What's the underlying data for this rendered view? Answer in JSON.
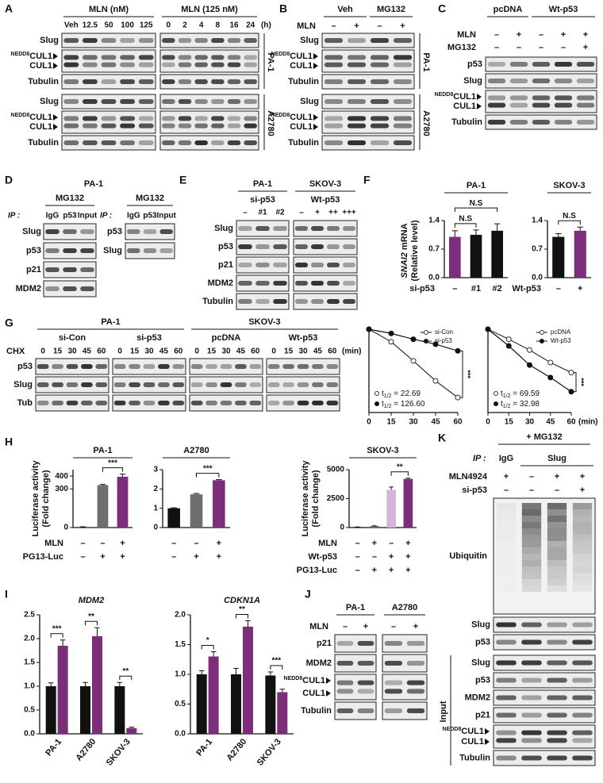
{
  "A": {
    "letter": "A",
    "groups": [
      {
        "title": "MLN (nM)",
        "lanes": [
          "Veh",
          "12.5",
          "50",
          "100",
          "125"
        ]
      },
      {
        "title": "MLN (125 nM)",
        "lanes": [
          "0",
          "2",
          "4",
          "8",
          "16",
          "24"
        ],
        "unit": "(h)"
      }
    ],
    "blocks": [
      {
        "cell": "PA-1",
        "rows": [
          "Slug",
          {
            "sup": "NEDD8",
            "top": "CUL1",
            "bottom": "CUL1"
          },
          "Tubulin"
        ]
      },
      {
        "cell": "A2780",
        "rows": [
          "Slug",
          {
            "sup": "NEDD8",
            "top": "CUL1",
            "bottom": "CUL1"
          },
          "Tubulin"
        ]
      }
    ]
  },
  "B": {
    "letter": "B",
    "groups": [
      "Veh",
      "MG132"
    ],
    "conds": [
      {
        "label": "MLN",
        "values": [
          "–",
          "+",
          "–",
          "+"
        ]
      }
    ],
    "blocks": [
      {
        "cell": "PA-1",
        "rows": [
          "Slug",
          {
            "sup": "NEDD8",
            "top": "CUL1",
            "bottom": "CUL1"
          },
          "Tubulin"
        ]
      },
      {
        "cell": "A2780",
        "rows": [
          "Slug",
          {
            "sup": "NEDD8",
            "top": "CUL1",
            "bottom": "CUL1"
          },
          "Tubulin"
        ]
      }
    ]
  },
  "C": {
    "letter": "C",
    "groups": [
      "pcDNA",
      "Wt-p53"
    ],
    "conds": [
      {
        "label": "MLN",
        "values": [
          "–",
          "+",
          "–",
          "+",
          "+"
        ]
      },
      {
        "label": "MG132",
        "values": [
          "–",
          "–",
          "–",
          "–",
          "+"
        ]
      }
    ],
    "rows": [
      "p53",
      "Slug",
      {
        "sup": "NEDD8",
        "top": "CUL1",
        "bottom": "CUL1"
      },
      "Tubulin"
    ]
  },
  "D": {
    "letter": "D",
    "cell": "PA-1",
    "left": {
      "treatment": "MG132",
      "ip": "IP :",
      "lanes": [
        "IgG",
        "p53",
        "Input"
      ],
      "rows": [
        "Slug",
        "p53",
        "p21",
        "MDM2"
      ]
    },
    "right": {
      "treatment": "MG132",
      "ip": "IP :",
      "lanes": [
        "IgG",
        "p53",
        "Input"
      ],
      "rows": [
        "p53",
        "Slug"
      ]
    }
  },
  "E": {
    "letter": "E",
    "groups": [
      {
        "title": "PA-1",
        "sub": "si-p53",
        "lanes": [
          "–",
          "#1",
          "#2"
        ]
      },
      {
        "title": "SKOV-3",
        "sub": "Wt-p53",
        "lanes": [
          "–",
          "+",
          "++",
          "+++"
        ]
      }
    ],
    "rows": [
      "Slug",
      "p53",
      "p21",
      "MDM2",
      "Tubulin"
    ]
  },
  "F": {
    "letter": "F",
    "ylabel": {
      "gene": "SNAI2",
      "text": " mRNA",
      "unit": "(Relative level)"
    },
    "charts": [
      {
        "type": "bar",
        "title": "PA-1",
        "cond": "si-p53",
        "categories": [
          "–",
          "#1",
          "#2"
        ],
        "values": [
          1.0,
          1.05,
          1.15
        ],
        "errors": [
          0.15,
          0.12,
          0.17
        ],
        "colors": [
          "#7d2e7a",
          "#111111",
          "#111111"
        ],
        "ylim": [
          0,
          1.4
        ],
        "yticks": [
          {
            "value": 0,
            "label": "0.0"
          },
          0.7,
          1.4
        ],
        "sig": [
          "N.S",
          "N.S"
        ]
      },
      {
        "type": "bar",
        "title": "SKOV-3",
        "cond": "Wt-p53",
        "categories": [
          "–",
          "+"
        ],
        "values": [
          1.0,
          1.15
        ],
        "errors": [
          0.08,
          0.09
        ],
        "colors": [
          "#111111",
          "#7d2e7a"
        ],
        "ylim": [
          0,
          1.4
        ],
        "yticks": [
          {
            "value": 0,
            "label": "0.0"
          },
          0.7,
          1.4
        ],
        "sig": [
          "N.S"
        ]
      }
    ]
  },
  "G": {
    "letter": "G",
    "cells": [
      "PA-1",
      "SKOV-3"
    ],
    "cond_label": "CHX",
    "unit": "(min)",
    "groups": [
      {
        "title": "si-Con",
        "lanes": [
          "0",
          "15",
          "30",
          "45",
          "60"
        ]
      },
      {
        "title": "si-p53",
        "lanes": [
          "0",
          "15",
          "30",
          "45",
          "60"
        ]
      },
      {
        "title": "pcDNA",
        "lanes": [
          "0",
          "15",
          "30",
          "45",
          "60"
        ]
      },
      {
        "title": "Wt-p53",
        "lanes": [
          "0",
          "15",
          "30",
          "45",
          "60"
        ]
      }
    ],
    "rows": [
      "p53",
      "Slug",
      "Tub"
    ],
    "charts": [
      {
        "type": "line",
        "x": [
          0,
          15,
          30,
          45,
          60
        ],
        "xlim": [
          0,
          60
        ],
        "ylim": [
          0,
          100
        ],
        "xticks": [
          0,
          15,
          30,
          45,
          60
        ],
        "series": [
          {
            "name": "si-Con",
            "color": "#333333",
            "marker": "open",
            "values": [
              100,
              85,
              62,
              38,
              18
            ]
          },
          {
            "name": "si-p53",
            "color": "#111111",
            "marker": "filled",
            "values": [
              100,
              95,
              88,
              82,
              74
            ]
          }
        ],
        "half_lives": [
          {
            "symbol": "t",
            "sub": "1/2",
            "text": " = 22.69"
          },
          {
            "symbol": "t",
            "sub": "1/2",
            "text": " = 126.60"
          }
        ],
        "sig": "***"
      },
      {
        "type": "line",
        "x": [
          0,
          15,
          30,
          45,
          60
        ],
        "xlim": [
          0,
          60
        ],
        "ylim": [
          0,
          100
        ],
        "xticks": [
          0,
          15,
          30,
          45,
          60
        ],
        "xunit": "(min)",
        "series": [
          {
            "name": "pcDNA",
            "color": "#333333",
            "marker": "open",
            "values": [
              100,
              88,
              75,
              60,
              48
            ]
          },
          {
            "name": "Wt-p53",
            "color": "#111111",
            "marker": "filled",
            "values": [
              100,
              80,
              57,
              42,
              25
            ]
          }
        ],
        "half_lives": [
          {
            "symbol": "t",
            "sub": "1/2",
            "text": " = 69.59"
          },
          {
            "symbol": "t",
            "sub": "1/2",
            "text": " = 32.98"
          }
        ],
        "sig": "***"
      }
    ]
  },
  "H": {
    "letter": "H",
    "charts": [
      {
        "type": "bar",
        "title": "PA-1",
        "ylabel": "Luciferase activity",
        "yunit": "(Fold change)",
        "values": [
          1,
          330,
          395
        ],
        "errors": [
          5,
          5,
          20
        ],
        "colors": [
          "#111111",
          "#6e6e6e",
          "#7d2e7a"
        ],
        "ylim": [
          0,
          450
        ],
        "yticks": [
          0,
          300,
          400
        ],
        "conds": [
          {
            "label": "MLN",
            "values": [
              "–",
              "–",
              "+"
            ]
          },
          {
            "label": "PG13-Luc",
            "values": [
              "–",
              "+",
              "+"
            ]
          }
        ],
        "sig": [
          "***"
        ]
      },
      {
        "type": "bar",
        "title": "A2780",
        "values": [
          1,
          1.72,
          2.45
        ],
        "errors": [
          0.02,
          0.04,
          0.03
        ],
        "colors": [
          "#111111",
          "#6e6e6e",
          "#7d2e7a"
        ],
        "ylim": [
          0,
          3
        ],
        "yticks": [
          0,
          1,
          2,
          3
        ],
        "conds": [
          {
            "values": [
              "–",
              "–",
              "+"
            ]
          },
          {
            "values": [
              "–",
              "+",
              "+"
            ]
          }
        ],
        "sig": [
          "***"
        ]
      },
      {
        "type": "bar",
        "title": "SKOV-3",
        "ylabel": "Luciferase activity",
        "yunit": "(Fold change)",
        "values": [
          40,
          130,
          3250,
          4200
        ],
        "errors": [
          10,
          20,
          250,
          60
        ],
        "colors": [
          "#111111",
          "#6e6e6e",
          "#d6b3db",
          "#7d2e7a"
        ],
        "ylim": [
          0,
          5000
        ],
        "yticks": [
          0,
          2500,
          5000
        ],
        "conds": [
          {
            "label": "MLN",
            "values": [
              "–",
              "+",
              "–",
              "+"
            ]
          },
          {
            "label": "Wt-p53",
            "values": [
              "–",
              "–",
              "+",
              "+"
            ]
          },
          {
            "label": "PG13-Luc",
            "values": [
              "–",
              "+",
              "+",
              "+"
            ]
          }
        ],
        "sig": [
          "**"
        ]
      }
    ]
  },
  "I": {
    "letter": "I",
    "charts": [
      {
        "type": "bar",
        "title": "MDM2",
        "categories": [
          "PA-1",
          "A2780",
          "SKOV-3"
        ],
        "series": [
          {
            "color": "#111111",
            "values": [
              1,
              1,
              1
            ],
            "errors": [
              0.07,
              0.08,
              0.08
            ]
          },
          {
            "color": "#7d2e7a",
            "values": [
              1.85,
              2.05,
              0.12
            ],
            "errors": [
              0.12,
              0.18,
              0.02
            ]
          }
        ],
        "ylim": [
          0,
          2.5
        ],
        "yticks": [
          {
            "value": 0,
            "label": "0.0"
          },
          0.5,
          {
            "value": 1,
            "label": "1.0"
          },
          1.5,
          {
            "value": 2,
            "label": "2.0"
          },
          2.5
        ],
        "sig": [
          "***",
          "**",
          "**"
        ]
      },
      {
        "type": "bar",
        "title": "CDKN1A",
        "categories": [
          "PA-1",
          "A2780",
          "SKOV-3"
        ],
        "series": [
          {
            "color": "#111111",
            "values": [
              1,
              1,
              0.98
            ],
            "errors": [
              0.06,
              0.1,
              0.06
            ]
          },
          {
            "color": "#7d2e7a",
            "values": [
              1.3,
              1.8,
              0.7
            ],
            "errors": [
              0.08,
              0.1,
              0.05
            ]
          }
        ],
        "ylim": [
          0,
          2
        ],
        "yticks": [
          {
            "value": 0,
            "label": "0.0"
          },
          0.5,
          {
            "value": 1,
            "label": "1.0"
          },
          1.5,
          {
            "value": 2,
            "label": "2.0"
          }
        ],
        "sig": [
          "*",
          "**",
          "***"
        ]
      }
    ]
  },
  "J": {
    "letter": "J",
    "groups": [
      "PA-1",
      "A2780"
    ],
    "conds": [
      {
        "label": "MLN",
        "values": [
          "–",
          "+",
          "–",
          "+"
        ]
      }
    ],
    "rows": [
      "p21",
      "MDM2",
      {
        "sup": "NEDD8",
        "top": "CUL1",
        "bottom": "CUL1"
      },
      "Tubulin"
    ]
  },
  "K": {
    "letter": "K",
    "treatment": "+ MG132",
    "ip": "IP :",
    "groups": [
      "IgG",
      "Slug"
    ],
    "conds": [
      {
        "label": "MLN4924",
        "values": [
          "+",
          "–",
          "+",
          "+"
        ]
      },
      {
        "label": "si-p53",
        "values": [
          "–",
          "–",
          "–",
          "+"
        ]
      }
    ],
    "ip_rows": [
      "Ubiquitin",
      "Slug",
      "p53"
    ],
    "input_label": "Input",
    "input_rows": [
      "Slug",
      "p53",
      "MDM2",
      "p21",
      {
        "sup": "NEDD8",
        "top": "CUL1",
        "bottom": "CUL1"
      },
      "Tubulin"
    ]
  }
}
